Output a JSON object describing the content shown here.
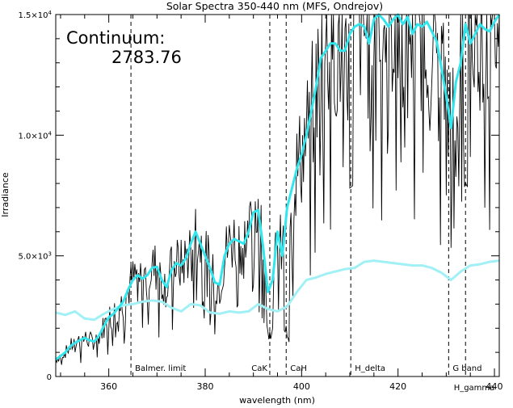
{
  "chart_data": {
    "type": "line",
    "title": "Solar Spectra 350-440 nm (MFS, Ondrejov)",
    "xlabel": "wavelength (nm)",
    "ylabel": "Irradiance",
    "xlim": [
      349,
      441
    ],
    "ylim": [
      0,
      15000
    ],
    "x_ticks": [
      360,
      380,
      400,
      420,
      440
    ],
    "x_tick_labels": [
      "360",
      "380",
      "400",
      "420",
      "440"
    ],
    "y_ticks": [
      0,
      5000,
      10000,
      15000
    ],
    "y_tick_labels": [
      {
        "mant": "0",
        "exp": ""
      },
      {
        "mant": "5.0×10",
        "exp": "3"
      },
      {
        "mant": "1.0×10",
        "exp": "4"
      },
      {
        "mant": "1.5×10",
        "exp": "4"
      }
    ],
    "continuum_label": "Continuum:",
    "continuum_value": "2783.76",
    "markers": [
      {
        "x": 364.6,
        "label": "Balmer. limit"
      },
      {
        "x": 393.4,
        "label": "CaK"
      },
      {
        "x": 396.8,
        "label": "CaH"
      },
      {
        "x": 410.2,
        "label": "H_delta"
      },
      {
        "x": 430.5,
        "label": "G band"
      },
      {
        "x": 434.0,
        "label": "H_gamma"
      }
    ],
    "colors": {
      "spectrum": "#000000",
      "smoothed": "#33e6ee",
      "continuum": "#a0f0f5"
    },
    "series": [
      {
        "role": "smoothed",
        "x": [
          349,
          350,
          351,
          352,
          353,
          354,
          355,
          356,
          357,
          358,
          359,
          360,
          361,
          362,
          363,
          364,
          365,
          366,
          367,
          368,
          369,
          370,
          371,
          372,
          373,
          374,
          375,
          376,
          377,
          378,
          379,
          380,
          381,
          382,
          383,
          384,
          385,
          386,
          387,
          388,
          389,
          390,
          391,
          392,
          393,
          394,
          395,
          396,
          397,
          398,
          399,
          400,
          401,
          402,
          403,
          404,
          405,
          406,
          407,
          408,
          409,
          410,
          411,
          412,
          413,
          414,
          415,
          416,
          417,
          418,
          419,
          420,
          421,
          422,
          423,
          424,
          425,
          426,
          427,
          428,
          429,
          430,
          431,
          432,
          433,
          434,
          435,
          436,
          437,
          438,
          439,
          440,
          441
        ],
        "y": [
          700,
          850,
          1000,
          1250,
          1400,
          1500,
          1600,
          1500,
          1450,
          1700,
          2100,
          2450,
          2600,
          2850,
          3100,
          3600,
          4000,
          4200,
          4050,
          4200,
          4500,
          4550,
          4000,
          3700,
          4400,
          4700,
          4600,
          4900,
          5500,
          6000,
          5500,
          5000,
          4500,
          3900,
          3800,
          5000,
          5500,
          5700,
          5600,
          5500,
          6000,
          6800,
          6900,
          5400,
          3500,
          4000,
          6000,
          5000,
          7000,
          7800,
          8600,
          9200,
          10000,
          11000,
          12000,
          13200,
          13500,
          13800,
          13800,
          13500,
          13500,
          14200,
          14500,
          14600,
          14500,
          13800,
          14800,
          15000,
          14800,
          14500,
          14800,
          15000,
          14600,
          14900,
          14200,
          14600,
          14500,
          14700,
          14300,
          13900,
          12800,
          11600,
          10300,
          12200,
          13000,
          14600,
          13800,
          14200,
          14600,
          14400,
          14300,
          14700,
          15000
        ]
      },
      {
        "role": "continuum",
        "x": [
          349,
          351,
          353,
          355,
          357,
          359,
          361,
          363,
          365,
          367,
          369,
          371,
          373,
          375,
          377,
          379,
          381,
          383,
          385,
          387,
          389,
          391,
          393,
          395,
          397,
          399,
          401,
          403,
          405,
          407,
          409,
          411,
          413,
          415,
          417,
          419,
          421,
          423,
          425,
          427,
          429,
          431,
          433,
          435,
          437,
          439,
          441
        ],
        "y": [
          2650,
          2550,
          2700,
          2400,
          2350,
          2600,
          2800,
          2950,
          3000,
          3100,
          3150,
          3100,
          2850,
          2700,
          3000,
          2950,
          2650,
          2600,
          2700,
          2650,
          2700,
          3000,
          2800,
          2700,
          2900,
          3500,
          4000,
          4100,
          4250,
          4350,
          4450,
          4500,
          4750,
          4800,
          4750,
          4700,
          4650,
          4600,
          4600,
          4500,
          4300,
          4000,
          4350,
          4600,
          4650,
          4750,
          4800
        ]
      }
    ]
  }
}
